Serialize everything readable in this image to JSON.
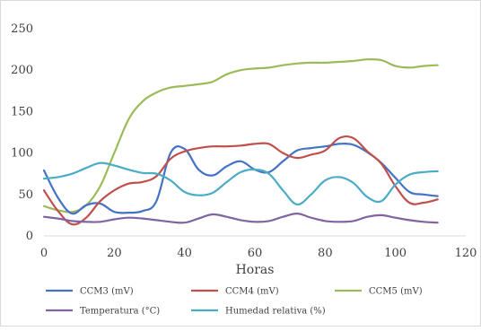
{
  "chart_data": {
    "type": "line",
    "xlabel": "Horas",
    "ylabel": "",
    "xlim": [
      0,
      120
    ],
    "ylim": [
      0,
      250
    ],
    "xticks": [
      0,
      20,
      40,
      60,
      80,
      100,
      120
    ],
    "yticks": [
      0,
      50,
      100,
      150,
      200,
      250
    ],
    "grid": false,
    "legend_placement": "bottom",
    "series": [
      {
        "name": "CCM3 (mV)",
        "color": "#4472C4",
        "x": [
          0,
          4,
          8,
          12,
          16,
          20,
          24,
          28,
          32,
          36,
          40,
          44,
          48,
          52,
          56,
          60,
          64,
          68,
          72,
          76,
          80,
          84,
          88,
          92,
          96,
          100,
          104,
          108,
          112
        ],
        "y": [
          79,
          46,
          27,
          37,
          39,
          29,
          28,
          30,
          42,
          100,
          105,
          80,
          73,
          84,
          90,
          80,
          77,
          90,
          103,
          106,
          108,
          111,
          110,
          101,
          88,
          70,
          53,
          50,
          48
        ]
      },
      {
        "name": "CCM4 (mV)",
        "color": "#C0504D",
        "x": [
          0,
          4,
          8,
          12,
          16,
          20,
          24,
          28,
          32,
          36,
          40,
          44,
          48,
          52,
          56,
          60,
          64,
          68,
          72,
          76,
          80,
          84,
          88,
          92,
          96,
          100,
          104,
          108,
          112
        ],
        "y": [
          55,
          30,
          14,
          22,
          42,
          55,
          63,
          65,
          72,
          93,
          102,
          106,
          108,
          108,
          109,
          111,
          111,
          100,
          94,
          98,
          103,
          118,
          118,
          102,
          87,
          60,
          40,
          40,
          44
        ]
      },
      {
        "name": "CCM5 (mV)",
        "color": "#9BBB59",
        "x": [
          0,
          4,
          8,
          12,
          16,
          20,
          24,
          28,
          32,
          36,
          40,
          44,
          48,
          52,
          56,
          60,
          64,
          68,
          72,
          76,
          80,
          84,
          88,
          92,
          96,
          100,
          104,
          108,
          112
        ],
        "y": [
          36,
          31,
          29,
          37,
          60,
          100,
          140,
          162,
          173,
          179,
          181,
          183,
          186,
          195,
          200,
          202,
          203,
          206,
          208,
          209,
          209,
          210,
          211,
          213,
          212,
          205,
          203,
          205,
          206
        ]
      },
      {
        "name": "Temperatura (°C)",
        "color": "#8064A2",
        "x": [
          0,
          4,
          8,
          12,
          16,
          20,
          24,
          28,
          32,
          36,
          40,
          44,
          48,
          52,
          56,
          60,
          64,
          68,
          72,
          76,
          80,
          84,
          88,
          92,
          96,
          100,
          104,
          108,
          112
        ],
        "y": [
          23,
          21,
          18,
          17,
          17,
          20,
          22,
          21,
          19,
          17,
          16,
          21,
          26,
          23,
          19,
          17,
          18,
          23,
          27,
          22,
          18,
          17,
          18,
          23,
          25,
          22,
          19,
          17,
          16
        ]
      },
      {
        "name": "Humedad relativa (%)",
        "color": "#4BACC6",
        "x": [
          0,
          4,
          8,
          12,
          16,
          20,
          24,
          28,
          32,
          36,
          40,
          44,
          48,
          52,
          56,
          60,
          64,
          68,
          72,
          76,
          80,
          84,
          88,
          92,
          96,
          100,
          104,
          108,
          112
        ],
        "y": [
          69,
          71,
          75,
          82,
          88,
          85,
          80,
          76,
          75,
          67,
          53,
          49,
          52,
          65,
          77,
          80,
          75,
          55,
          38,
          50,
          67,
          71,
          64,
          47,
          42,
          62,
          74,
          77,
          78
        ]
      }
    ]
  }
}
